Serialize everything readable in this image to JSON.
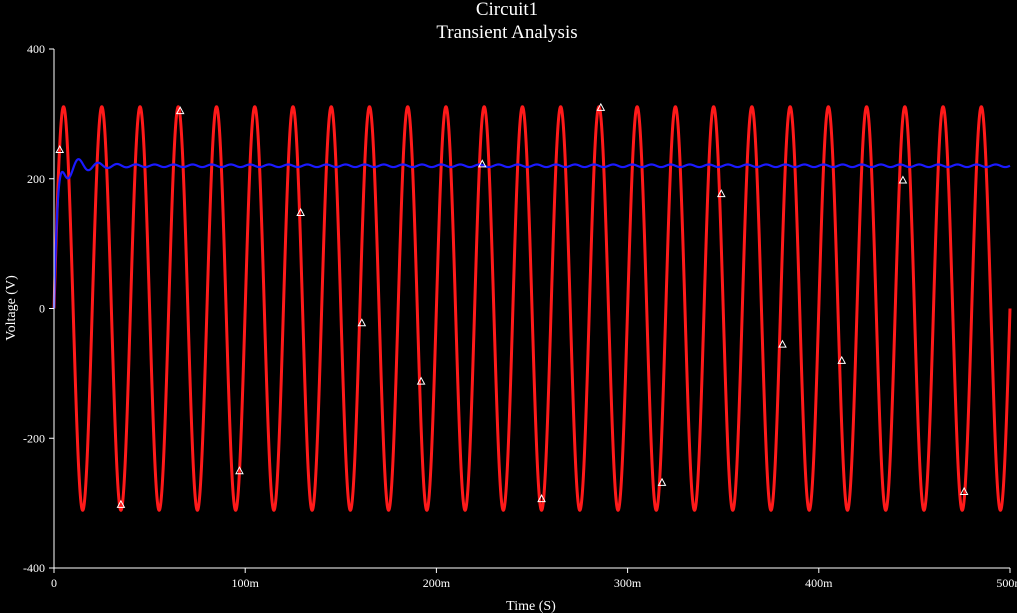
{
  "chart_data": {
    "type": "line",
    "title": "Circuit1",
    "subtitle": "Transient Analysis",
    "xlabel": "Time (S)",
    "ylabel": "Voltage (V)",
    "xlim": [
      0,
      0.5
    ],
    "ylim": [
      -400,
      400
    ],
    "x_ticks": [
      {
        "value": 0,
        "label": "0"
      },
      {
        "value": 0.1,
        "label": "100m"
      },
      {
        "value": 0.2,
        "label": "200m"
      },
      {
        "value": 0.3,
        "label": "300m"
      },
      {
        "value": 0.4,
        "label": "400m"
      },
      {
        "value": 0.5,
        "label": "500m"
      }
    ],
    "y_ticks": [
      {
        "value": -400,
        "label": "-400"
      },
      {
        "value": -200,
        "label": "-200"
      },
      {
        "value": 0,
        "label": "0"
      },
      {
        "value": 200,
        "label": "200"
      },
      {
        "value": 400,
        "label": "400"
      }
    ],
    "grid": false,
    "legend": "none",
    "background_color": "#000000",
    "axis_color": "#ffffff",
    "series": [
      {
        "color": "#ff1a1a",
        "waveform": "sine",
        "amplitude": 311,
        "frequency_hz": 50,
        "offset": 0,
        "phase_deg": 0
      },
      {
        "color": "#1a1aff",
        "waveform": "damped-step",
        "final_value": 220,
        "initial_value": 0,
        "settle_time": 0.03,
        "ripple_amplitude": 2,
        "ripple_frequency_hz": 100,
        "overshoot_peak": 242
      }
    ],
    "markers": [
      {
        "x": 0.003,
        "y": 245
      },
      {
        "x": 0.035,
        "y": -302
      },
      {
        "x": 0.066,
        "y": 305
      },
      {
        "x": 0.097,
        "y": -250
      },
      {
        "x": 0.129,
        "y": 148
      },
      {
        "x": 0.161,
        "y": -22
      },
      {
        "x": 0.192,
        "y": -112
      },
      {
        "x": 0.224,
        "y": 223
      },
      {
        "x": 0.255,
        "y": -293
      },
      {
        "x": 0.286,
        "y": 310
      },
      {
        "x": 0.318,
        "y": -268
      },
      {
        "x": 0.349,
        "y": 177
      },
      {
        "x": 0.381,
        "y": -55
      },
      {
        "x": 0.412,
        "y": -80
      },
      {
        "x": 0.444,
        "y": 198
      },
      {
        "x": 0.476,
        "y": -282
      }
    ]
  }
}
